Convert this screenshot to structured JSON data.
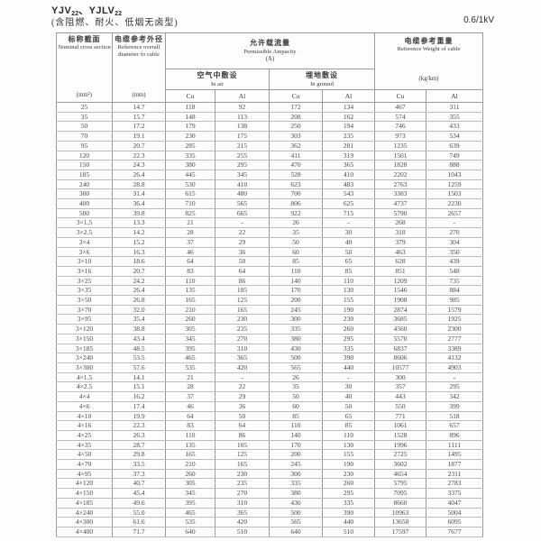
{
  "page": {
    "title": {
      "p1": "YJV",
      "s1": "22",
      "p2": "、YJLV",
      "s2": "22"
    },
    "subtitle": "(含阻燃、耐火、低烟无卤型)",
    "voltage": "0.6/1kV"
  },
  "table": {
    "headers": {
      "nominal": {
        "cn": "标称截面",
        "en": "Nominal cross section",
        "unit": "(mm²)"
      },
      "diameter": {
        "cn": "电缆参考外径",
        "en": "Reference overall diameter fo cable",
        "unit": "(mm)"
      },
      "ampacity": {
        "cn": "允许载流量",
        "en": "Permissible Ampacity",
        "unit": "(A)"
      },
      "in_air": {
        "cn": "空气中敷设",
        "en": "In air"
      },
      "in_ground": {
        "cn": "埋地敷设",
        "en": "In ground"
      },
      "weight": {
        "cn": "电缆参考重量",
        "en": "Reference Weight of cable",
        "unit": "(kg/km)"
      },
      "cu": "Cu",
      "al": "Al"
    },
    "sections": [
      {
        "rows": [
          [
            "25",
            "14.7",
            "118",
            "92",
            "172",
            "134",
            "467",
            "311"
          ],
          [
            "35",
            "15.7",
            "148",
            "113",
            "208",
            "162",
            "574",
            "355"
          ],
          [
            "50",
            "17.2",
            "179",
            "138",
            "250",
            "194",
            "746",
            "433"
          ],
          [
            "70",
            "19.1",
            "230",
            "175",
            "303",
            "235",
            "973",
            "534"
          ],
          [
            "95",
            "20.7",
            "285",
            "215",
            "362",
            "281",
            "1235",
            "639"
          ],
          [
            "120",
            "22.3",
            "335",
            "255",
            "411",
            "319",
            "1501",
            "749"
          ],
          [
            "150",
            "24.3",
            "380",
            "295",
            "470",
            "365",
            "1828",
            "888"
          ],
          [
            "185",
            "26.4",
            "445",
            "345",
            "528",
            "410",
            "2202",
            "1043"
          ],
          [
            "240",
            "28.8",
            "530",
            "410",
            "623",
            "483",
            "2763",
            "1259"
          ],
          [
            "300",
            "31.4",
            "615",
            "480",
            "700",
            "543",
            "3383",
            "1503"
          ],
          [
            "400",
            "36.4",
            "710",
            "565",
            "806",
            "625",
            "4737",
            "2230"
          ],
          [
            "500",
            "39.8",
            "825",
            "665",
            "922",
            "715",
            "5790",
            "2657"
          ]
        ]
      },
      {
        "rows": [
          [
            "3×1.5",
            "13.3",
            "21",
            "-",
            "26",
            "-",
            "268",
            "-"
          ],
          [
            "3×2.5",
            "14.2",
            "28",
            "22",
            "35",
            "30",
            "318",
            "270"
          ],
          [
            "3×4",
            "15.2",
            "37",
            "29",
            "50",
            "40",
            "379",
            "304"
          ],
          [
            "3×6",
            "16.3",
            "46",
            "36",
            "60",
            "50",
            "463",
            "350"
          ],
          [
            "3×10",
            "18.6",
            "64",
            "50",
            "85",
            "65",
            "628",
            "439"
          ],
          [
            "3×16",
            "20.7",
            "83",
            "64",
            "110",
            "85",
            "851",
            "548"
          ],
          [
            "3×25",
            "24.2",
            "110",
            "86",
            "140",
            "110",
            "1209",
            "735"
          ],
          [
            "3×35",
            "26.4",
            "135",
            "105",
            "170",
            "130",
            "1546",
            "884"
          ],
          [
            "3×50",
            "26.8",
            "165",
            "125",
            "200",
            "155",
            "1908",
            "985"
          ],
          [
            "3×70",
            "32.0",
            "210",
            "165",
            "245",
            "190",
            "2874",
            "1579"
          ],
          [
            "3×95",
            "35.4",
            "260",
            "230",
            "300",
            "230",
            "3685",
            "1925"
          ],
          [
            "3×120",
            "38.8",
            "305",
            "235",
            "335",
            "260",
            "4560",
            "2300"
          ],
          [
            "3×150",
            "43.4",
            "345",
            "270",
            "380",
            "295",
            "5570",
            "2777"
          ],
          [
            "3×185",
            "48.5",
            "395",
            "310",
            "430",
            "335",
            "6837",
            "3389"
          ],
          [
            "3×240",
            "53.5",
            "465",
            "365",
            "500",
            "390",
            "8606",
            "4132"
          ],
          [
            "3×300",
            "57.6",
            "535",
            "420",
            "565",
            "440",
            "10577",
            "4903"
          ]
        ]
      },
      {
        "rows": [
          [
            "4×1.5",
            "14.1",
            "21",
            "-",
            "26",
            "-",
            "300",
            "-"
          ],
          [
            "4×2.5",
            "15.1",
            "28",
            "22",
            "35",
            "30",
            "357",
            "295"
          ],
          [
            "4×4",
            "16.2",
            "37",
            "29",
            "50",
            "40",
            "443",
            "342"
          ],
          [
            "4×6",
            "17.4",
            "46",
            "36",
            "60",
            "50",
            "550",
            "399"
          ],
          [
            "4×10",
            "19.9",
            "64",
            "50",
            "85",
            "65",
            "771",
            "518"
          ],
          [
            "4×16",
            "22.3",
            "83",
            "64",
            "110",
            "85",
            "1061",
            "657"
          ],
          [
            "4×25",
            "26.3",
            "110",
            "86",
            "140",
            "110",
            "1528",
            "896"
          ],
          [
            "4×35",
            "28.7",
            "135",
            "105",
            "170",
            "130",
            "1996",
            "1111"
          ],
          [
            "4×50",
            "29.8",
            "165",
            "125",
            "200",
            "155",
            "2725",
            "1495"
          ],
          [
            "4×70",
            "33.5",
            "210",
            "165",
            "245",
            "190",
            "3602",
            "1877"
          ],
          [
            "4×95",
            "37.3",
            "260",
            "230",
            "300",
            "230",
            "4654",
            "2311"
          ],
          [
            "4×120",
            "40.7",
            "305",
            "235",
            "335",
            "260",
            "5795",
            "2783"
          ],
          [
            "4×150",
            "45.4",
            "345",
            "270",
            "380",
            "295",
            "7095",
            "3375"
          ],
          [
            "4×185",
            "49.6",
            "395",
            "310",
            "430",
            "335",
            "8660",
            "4047"
          ],
          [
            "4×240",
            "55.0",
            "465",
            "365",
            "500",
            "390",
            "10963",
            "5004"
          ],
          [
            "4×300",
            "61.6",
            "535",
            "420",
            "565",
            "440",
            "13650",
            "6095"
          ],
          [
            "4×400",
            "71.7",
            "640",
            "510",
            "640",
            "510",
            "17597",
            "7677"
          ]
        ]
      }
    ]
  }
}
